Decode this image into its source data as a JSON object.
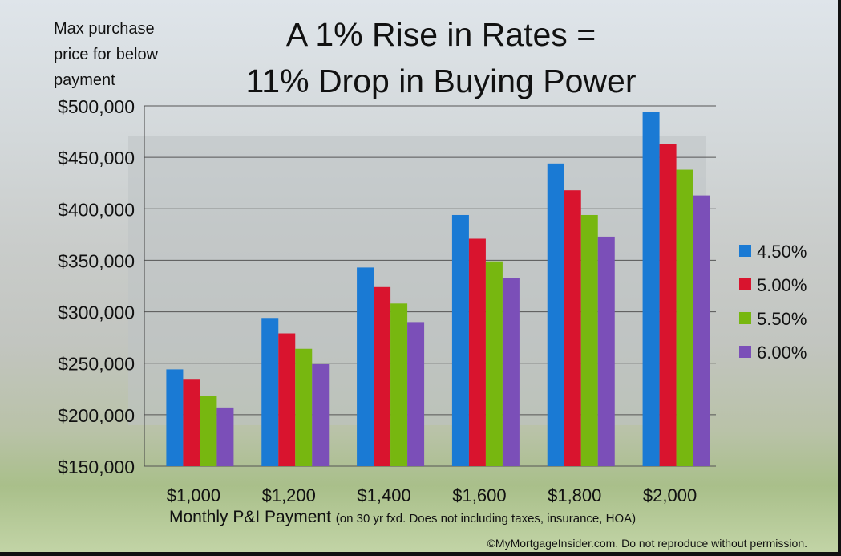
{
  "chart_data": {
    "type": "bar",
    "title_line1": "A 1% Rise in Rates =",
    "title_line2": "11% Drop in Buying Power",
    "ylabel": "Max purchase price for below payment",
    "ylabel_lines": [
      "Max purchase",
      "price for below",
      "payment"
    ],
    "xlabel": "Monthly P&I Payment",
    "xlabel_note": "(on 30 yr fxd. Does not including taxes, insurance, HOA)",
    "categories": [
      "$1,000",
      "$1,200",
      "$1,400",
      "$1,600",
      "$1,800",
      "$2,000"
    ],
    "ylim": [
      150000,
      500000
    ],
    "yticks": [
      150000,
      200000,
      250000,
      300000,
      350000,
      400000,
      450000,
      500000
    ],
    "ytick_labels": [
      "$150,000",
      "$200,000",
      "$250,000",
      "$300,000",
      "$350,000",
      "$400,000",
      "$450,000",
      "$500,000"
    ],
    "grid": true,
    "legend_position": "right",
    "series": [
      {
        "name": "4.50%",
        "color": "#1a7ad4",
        "values": [
          244000,
          294000,
          343000,
          394000,
          444000,
          494000
        ]
      },
      {
        "name": "5.00%",
        "color": "#d9142e",
        "values": [
          234000,
          279000,
          324000,
          371000,
          418000,
          463000
        ]
      },
      {
        "name": "5.50%",
        "color": "#77b710",
        "values": [
          218000,
          264000,
          308000,
          349000,
          394000,
          438000
        ]
      },
      {
        "name": "6.00%",
        "color": "#7b4fb8",
        "values": [
          207000,
          249000,
          290000,
          333000,
          373000,
          413000
        ]
      }
    ]
  },
  "copyright": "©MyMortgageInsider.com. Do not reproduce without permission."
}
